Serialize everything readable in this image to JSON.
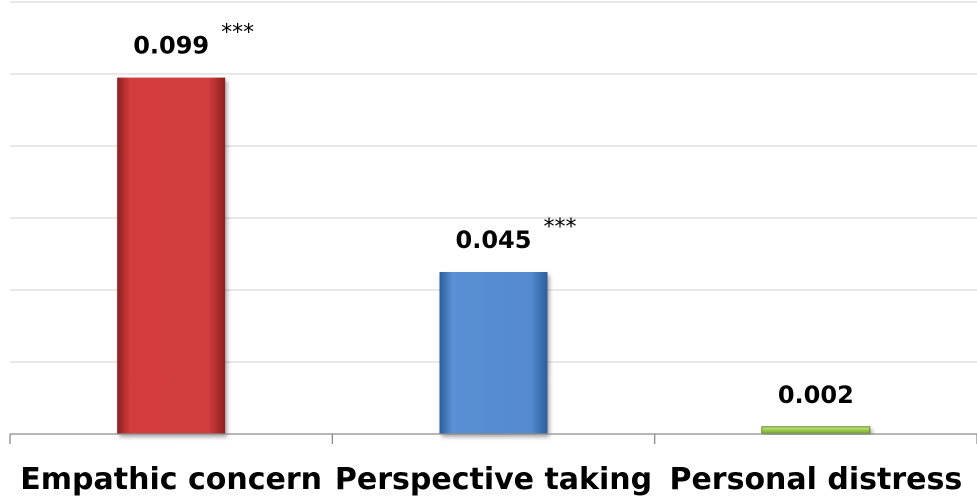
{
  "chart_data": {
    "type": "bar",
    "categories": [
      "Empathic concern",
      "Perspective taking",
      "Personal distress"
    ],
    "values": [
      0.099,
      0.045,
      0.002
    ],
    "value_labels": [
      "0.099",
      "0.045",
      "0.002"
    ],
    "significance": [
      "***",
      "***",
      ""
    ],
    "colors": [
      "#cc3a3a",
      "#4f86cc",
      "#9bc94a"
    ],
    "ylim": [
      0,
      0.12
    ],
    "grid": true,
    "title": "",
    "xlabel": "",
    "ylabel": ""
  }
}
